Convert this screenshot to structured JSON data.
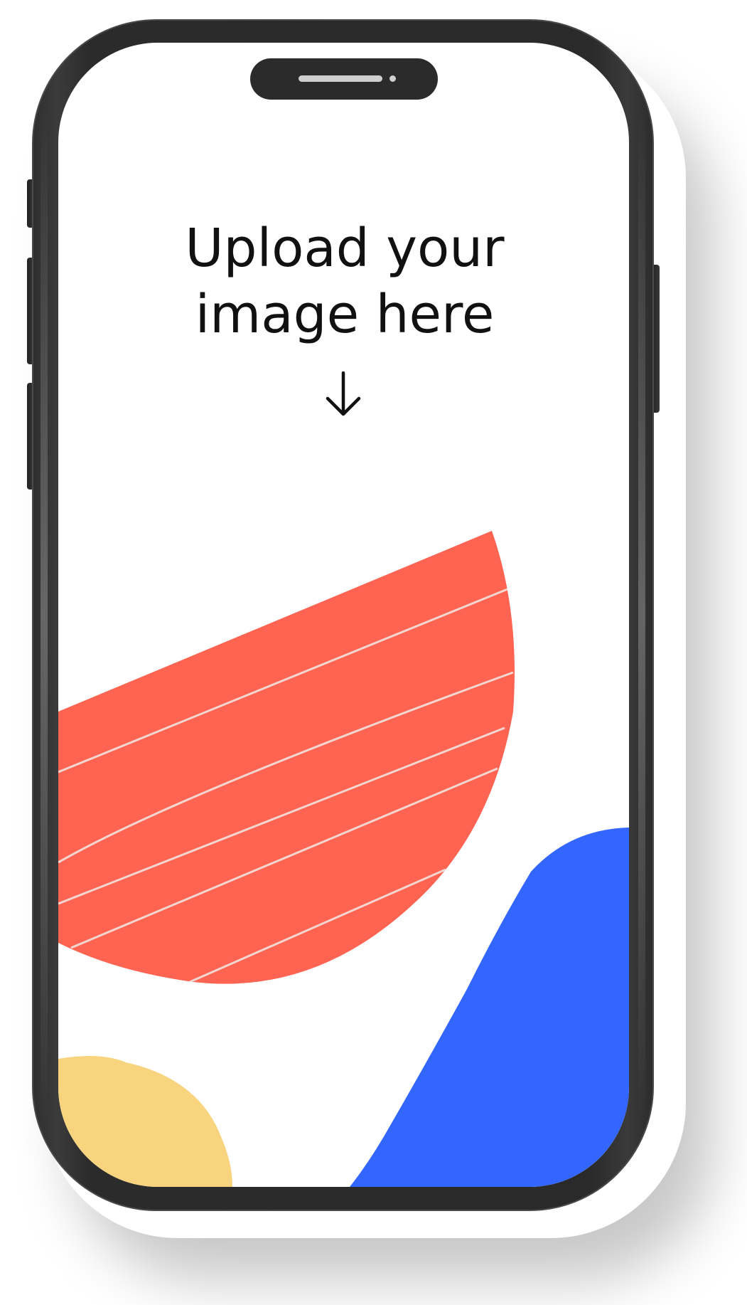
{
  "screen": {
    "prompt_text": "Upload your\nimage here",
    "arrow_icon": "arrow-down-icon"
  },
  "colors": {
    "frame": "#2b2b2b",
    "screen_bg": "#ffffff",
    "coral": "#FF6352",
    "blue": "#3366FF",
    "yellow": "#F8D47E",
    "text": "#111111"
  }
}
